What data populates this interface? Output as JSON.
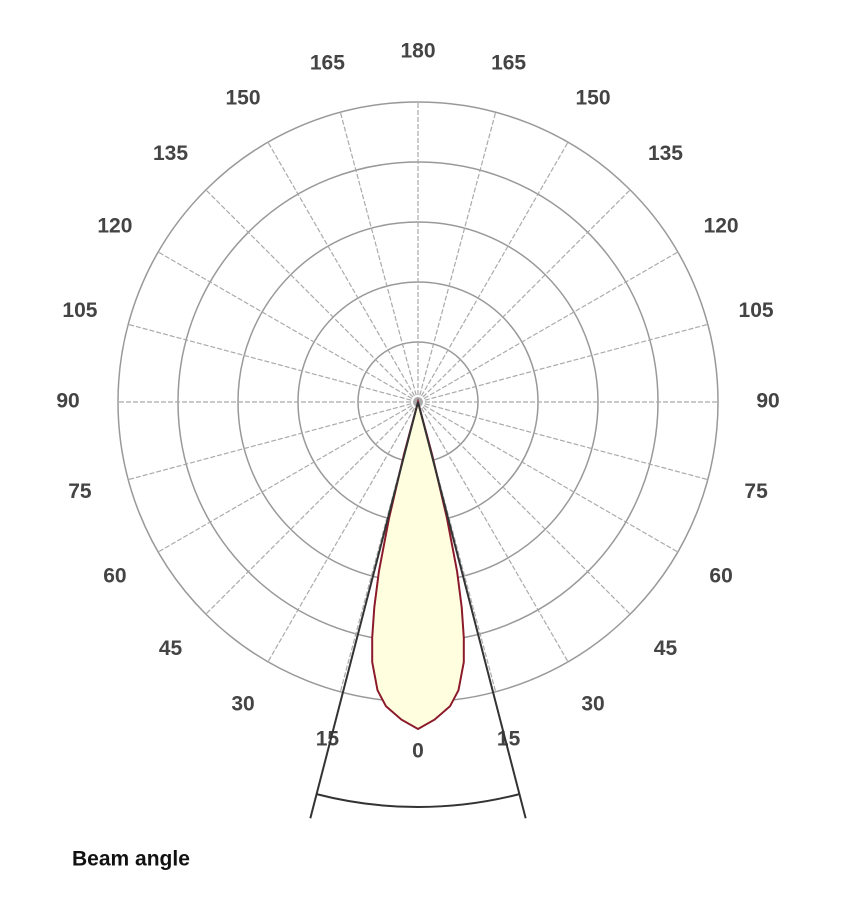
{
  "chart_data": {
    "type": "polar",
    "thetaticks": [
      0,
      15,
      30,
      45,
      60,
      75,
      90,
      105,
      120,
      135,
      150,
      165,
      180
    ],
    "rlim": [
      0,
      100
    ],
    "rticks": [
      20,
      40,
      60,
      80,
      100
    ],
    "series": [
      {
        "color": "#8b1a2b",
        "fill": "#ffffe0",
        "theta": [
          -16,
          -15,
          -14,
          -13,
          -12,
          -11,
          -10,
          -8,
          -6,
          -3,
          0,
          3,
          6,
          8,
          10,
          11,
          12,
          13,
          14,
          15,
          16
        ],
        "values": [
          0,
          18,
          40,
          58,
          70,
          80,
          88,
          97,
          102,
          106,
          109,
          106,
          102,
          97,
          88,
          80,
          70,
          58,
          40,
          18,
          0
        ]
      }
    ],
    "beam_half_angle": 14.5,
    "annotation": "Beam angle"
  }
}
